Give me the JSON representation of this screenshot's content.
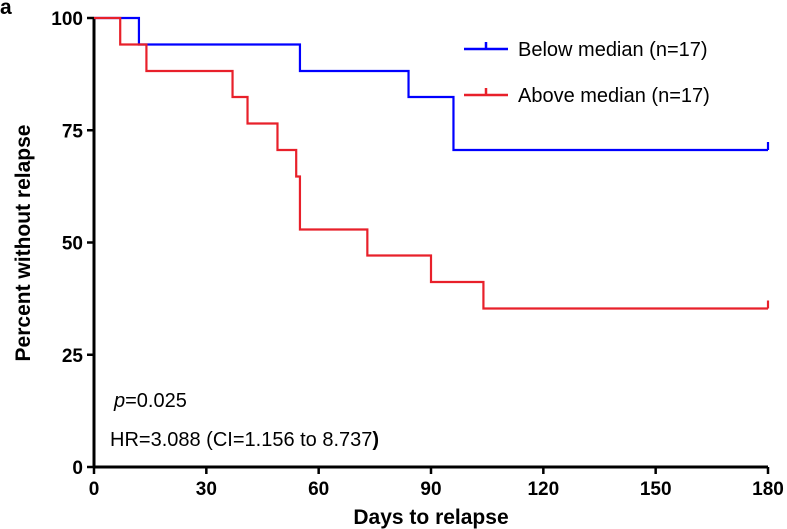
{
  "panel_label": "a",
  "chart_data": {
    "type": "line",
    "chart_style": "kaplan-meier step",
    "xlabel": "Days to relapse",
    "ylabel": "Percent without relapse",
    "xlim": [
      0,
      180
    ],
    "ylim": [
      0,
      100
    ],
    "xticks": [
      0,
      30,
      60,
      90,
      120,
      150,
      180
    ],
    "yticks": [
      0,
      25,
      50,
      75,
      100
    ],
    "grid": false,
    "legend_position": "top-right",
    "series": [
      {
        "name": "Below median (n=17)",
        "color": "#0000ff",
        "steps": [
          {
            "x": 0,
            "y": 100
          },
          {
            "x": 12,
            "y": 94.1
          },
          {
            "x": 55,
            "y": 88.2
          },
          {
            "x": 84,
            "y": 82.4
          },
          {
            "x": 96,
            "y": 70.6
          }
        ],
        "end_x": 180,
        "censor_x": [
          180
        ]
      },
      {
        "name": "Above median (n=17)",
        "color": "#e8202a",
        "steps": [
          {
            "x": 0,
            "y": 100
          },
          {
            "x": 7,
            "y": 94.1
          },
          {
            "x": 14,
            "y": 88.2
          },
          {
            "x": 37,
            "y": 82.4
          },
          {
            "x": 41,
            "y": 76.5
          },
          {
            "x": 49,
            "y": 70.6
          },
          {
            "x": 54,
            "y": 64.7
          },
          {
            "x": 55,
            "y": 52.9
          },
          {
            "x": 73,
            "y": 47.1
          },
          {
            "x": 90,
            "y": 41.2
          },
          {
            "x": 104,
            "y": 35.3
          }
        ],
        "end_x": 180,
        "censor_x": [
          180
        ]
      }
    ],
    "annotations": {
      "p_symbol": "p",
      "p_value": "=0.025",
      "hr_text": "HR=3.088 (CI=1.156 to 8.737",
      "hr_close": ")"
    }
  }
}
